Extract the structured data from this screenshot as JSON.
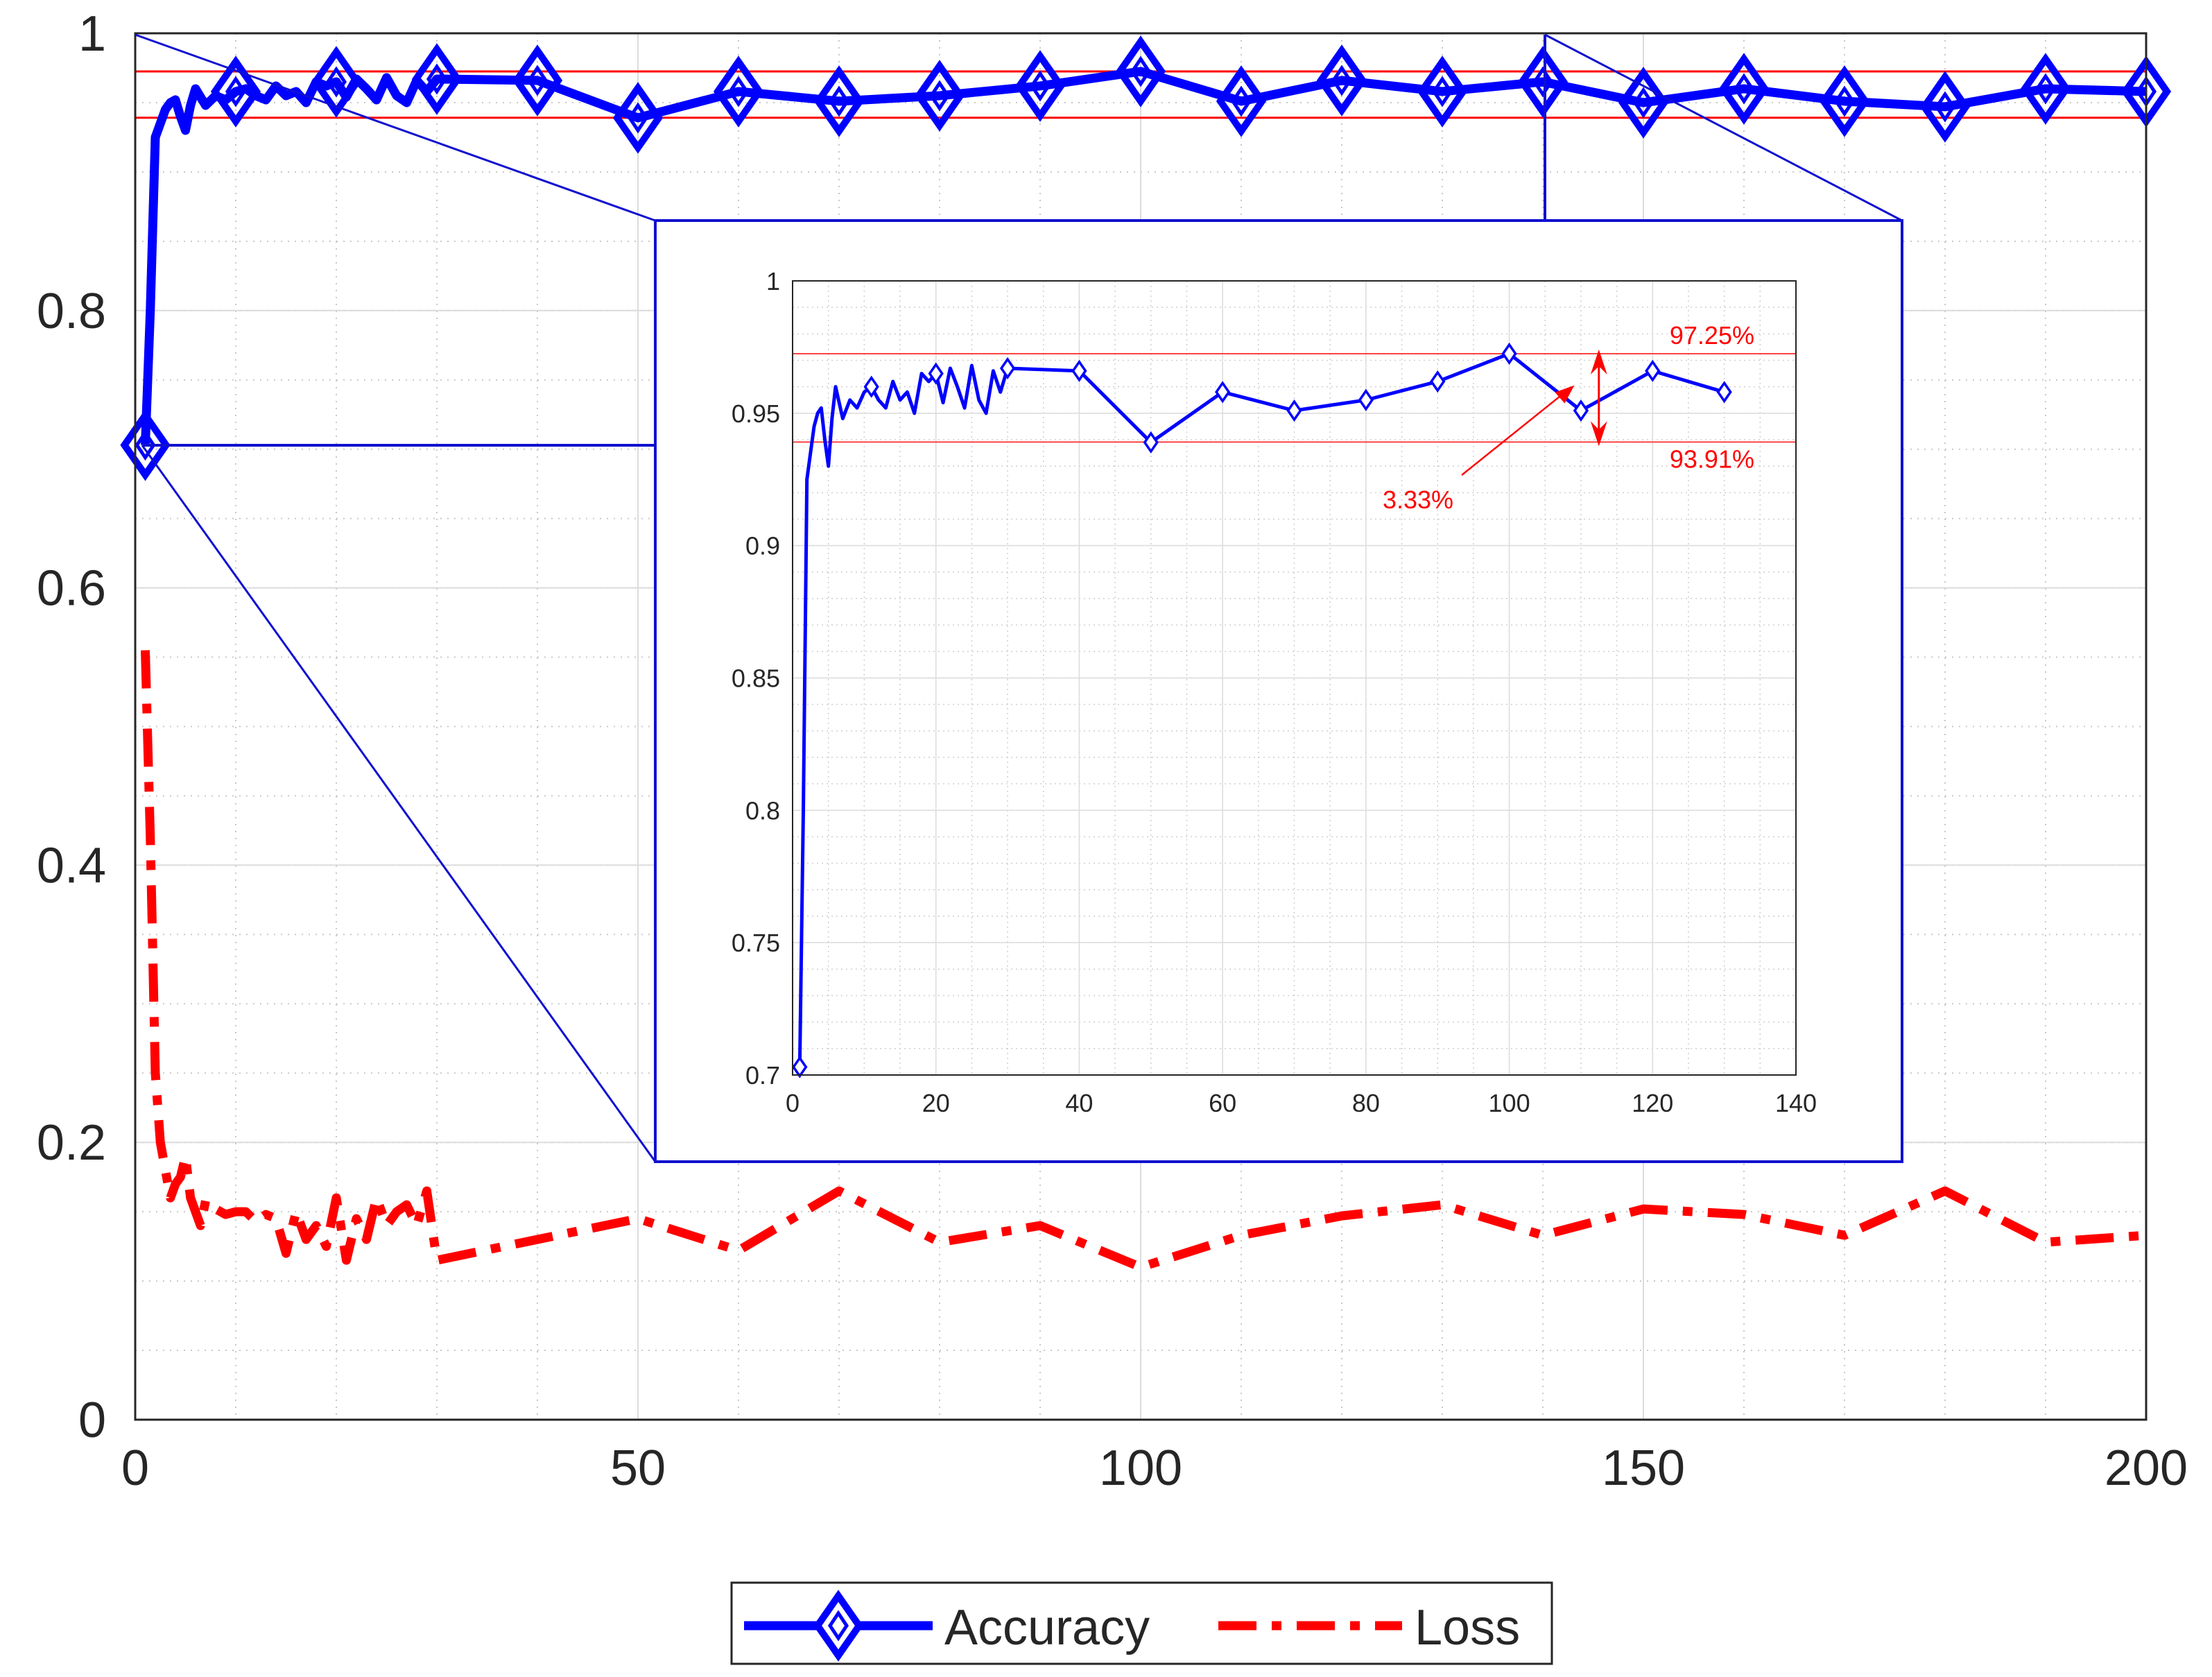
{
  "chart_data": [
    {
      "type": "line",
      "role": "main",
      "xlim": [
        0,
        200
      ],
      "ylim": [
        0,
        1
      ],
      "x_ticks": [
        0,
        50,
        100,
        150,
        200
      ],
      "x_tick_labels": [
        "0",
        "50",
        "100",
        "150",
        "200"
      ],
      "y_ticks": [
        0,
        0.2,
        0.4,
        0.6,
        0.8,
        1
      ],
      "y_tick_labels": [
        "0",
        "0.2",
        "0.4",
        "0.6",
        "0.8",
        "1"
      ],
      "grid": true,
      "reference_lines": [
        0.9725,
        0.9391
      ],
      "legend": {
        "position": "bottom-center",
        "entries": [
          "Accuracy",
          "Loss"
        ]
      },
      "series": [
        {
          "name": "Accuracy",
          "color": "#0000ff",
          "style": "solid-diamond",
          "x": [
            1,
            1.5,
            2,
            2.5,
            3,
            3.5,
            4,
            4.5,
            5,
            5.5,
            6,
            7,
            8,
            9,
            10,
            11,
            12,
            13,
            14,
            15,
            16,
            17,
            18,
            19,
            20,
            21,
            22,
            23,
            24,
            25,
            26,
            27,
            28,
            29,
            30,
            40,
            50,
            60,
            70,
            80,
            90,
            100,
            110,
            120,
            130,
            140,
            150,
            160,
            170,
            180,
            190,
            200
          ],
          "y": [
            0.703,
            0.8,
            0.925,
            0.935,
            0.945,
            0.95,
            0.952,
            0.94,
            0.93,
            0.948,
            0.96,
            0.948,
            0.955,
            0.952,
            0.958,
            0.96,
            0.955,
            0.952,
            0.962,
            0.955,
            0.958,
            0.95,
            0.965,
            0.962,
            0.965,
            0.954,
            0.967,
            0.96,
            0.952,
            0.968,
            0.955,
            0.95,
            0.966,
            0.958,
            0.967,
            0.966,
            0.939,
            0.958,
            0.951,
            0.955,
            0.962,
            0.9725,
            0.951,
            0.966,
            0.958,
            0.965,
            0.95,
            0.96,
            0.951,
            0.947,
            0.96,
            0.958
          ],
          "marker_x": [
            1,
            10,
            20,
            30,
            40,
            50,
            60,
            70,
            80,
            90,
            100,
            110,
            120,
            130,
            140,
            150,
            160,
            170,
            180,
            190,
            200
          ]
        },
        {
          "name": "Loss",
          "color": "#ff0000",
          "style": "dash-dot",
          "x": [
            1,
            1.5,
            2,
            2.5,
            3,
            3.5,
            4,
            4.5,
            5,
            5.5,
            6,
            6.5,
            7,
            8,
            9,
            10,
            11,
            12,
            13,
            14,
            15,
            16,
            17,
            18,
            19,
            20,
            21,
            22,
            23,
            24,
            25,
            26,
            27,
            28,
            29,
            30,
            40,
            50,
            60,
            70,
            80,
            90,
            100,
            110,
            120,
            130,
            140,
            150,
            160,
            170,
            180,
            190,
            200
          ],
          "y": [
            0.555,
            0.42,
            0.25,
            0.2,
            0.18,
            0.16,
            0.17,
            0.175,
            0.19,
            0.16,
            0.15,
            0.14,
            0.158,
            0.152,
            0.148,
            0.15,
            0.15,
            0.143,
            0.148,
            0.145,
            0.12,
            0.15,
            0.13,
            0.14,
            0.125,
            0.16,
            0.115,
            0.145,
            0.13,
            0.16,
            0.14,
            0.15,
            0.155,
            0.14,
            0.165,
            0.115,
            0.13,
            0.145,
            0.122,
            0.165,
            0.128,
            0.14,
            0.11,
            0.133,
            0.147,
            0.155,
            0.133,
            0.152,
            0.148,
            0.133,
            0.165,
            0.128,
            0.133
          ]
        }
      ]
    },
    {
      "type": "line",
      "role": "inset",
      "xlim": [
        0,
        140
      ],
      "ylim": [
        0.7,
        1
      ],
      "x_ticks": [
        0,
        20,
        40,
        60,
        80,
        100,
        120,
        140
      ],
      "x_tick_labels": [
        "0",
        "20",
        "40",
        "60",
        "80",
        "100",
        "120",
        "140"
      ],
      "y_ticks": [
        0.7,
        0.75,
        0.8,
        0.85,
        0.9,
        0.95,
        1
      ],
      "y_tick_labels": [
        "0.7",
        "0.75",
        "0.8",
        "0.85",
        "0.9",
        "0.95",
        "1"
      ],
      "grid": true,
      "reference_lines": [
        0.9725,
        0.9391
      ],
      "annotations": {
        "upper": "97.25%",
        "lower": "93.91%",
        "gap": "3.33%"
      },
      "series": [
        {
          "name": "Accuracy",
          "color": "#0000ff",
          "x": [
            1,
            1.5,
            2,
            2.5,
            3,
            3.5,
            4,
            4.5,
            5,
            5.5,
            6,
            7,
            8,
            9,
            10,
            11,
            12,
            13,
            14,
            15,
            16,
            17,
            18,
            19,
            20,
            21,
            22,
            23,
            24,
            25,
            26,
            27,
            28,
            29,
            30,
            40,
            50,
            60,
            70,
            80,
            90,
            100,
            110,
            120,
            130
          ],
          "y": [
            0.703,
            0.8,
            0.925,
            0.935,
            0.945,
            0.95,
            0.952,
            0.94,
            0.93,
            0.948,
            0.96,
            0.948,
            0.955,
            0.952,
            0.958,
            0.96,
            0.955,
            0.952,
            0.962,
            0.955,
            0.958,
            0.95,
            0.965,
            0.962,
            0.965,
            0.954,
            0.967,
            0.96,
            0.952,
            0.968,
            0.955,
            0.95,
            0.966,
            0.958,
            0.967,
            0.966,
            0.939,
            0.958,
            0.951,
            0.955,
            0.962,
            0.9725,
            0.951,
            0.966,
            0.958
          ],
          "marker_x": [
            1,
            11,
            20,
            30,
            40,
            50,
            60,
            70,
            80,
            90,
            100,
            110,
            120,
            130
          ]
        }
      ]
    }
  ]
}
